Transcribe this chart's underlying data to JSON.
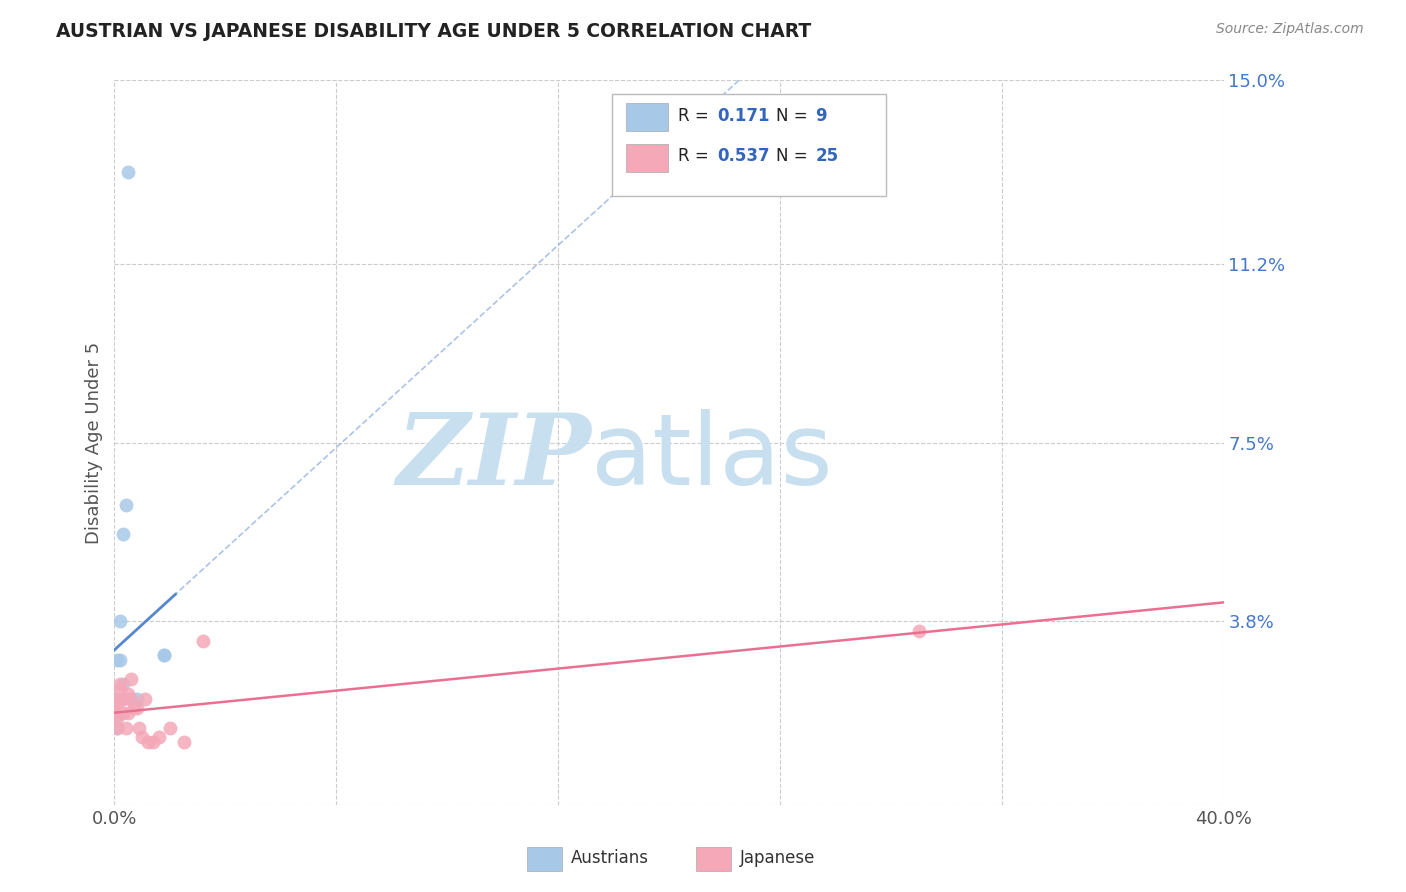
{
  "title": "AUSTRIAN VS JAPANESE DISABILITY AGE UNDER 5 CORRELATION CHART",
  "source": "Source: ZipAtlas.com",
  "ylabel": "Disability Age Under 5",
  "xlim": [
    0.0,
    0.4
  ],
  "ylim": [
    0.0,
    0.15
  ],
  "xtick_positions": [
    0.0,
    0.08,
    0.16,
    0.24,
    0.32,
    0.4
  ],
  "xticklabels_show": [
    "0.0%",
    "",
    "",
    "",
    "",
    "40.0%"
  ],
  "ytick_vals": [
    0.0,
    0.038,
    0.075,
    0.112,
    0.15
  ],
  "ytick_labels": [
    "",
    "3.8%",
    "7.5%",
    "11.2%",
    "15.0%"
  ],
  "austrians_x": [
    0.005,
    0.004,
    0.003,
    0.002,
    0.002,
    0.001,
    0.001,
    0.0,
    0.0,
    0.0,
    0.0,
    0.001,
    0.018,
    0.018,
    0.003,
    0.006,
    0.008,
    0.003
  ],
  "austrians_y": [
    0.131,
    0.062,
    0.056,
    0.038,
    0.03,
    0.03,
    0.022,
    0.022,
    0.02,
    0.019,
    0.018,
    0.016,
    0.031,
    0.031,
    0.025,
    0.022,
    0.022,
    0.022
  ],
  "japanese_x": [
    0.0,
    0.0,
    0.001,
    0.001,
    0.001,
    0.001,
    0.002,
    0.002,
    0.003,
    0.003,
    0.004,
    0.005,
    0.005,
    0.006,
    0.006,
    0.007,
    0.008,
    0.009,
    0.01,
    0.011,
    0.012,
    0.014,
    0.016,
    0.02,
    0.025,
    0.032,
    0.29
  ],
  "japanese_y": [
    0.021,
    0.019,
    0.021,
    0.018,
    0.016,
    0.022,
    0.025,
    0.024,
    0.022,
    0.019,
    0.016,
    0.023,
    0.019,
    0.026,
    0.022,
    0.02,
    0.02,
    0.016,
    0.014,
    0.022,
    0.013,
    0.013,
    0.014,
    0.016,
    0.013,
    0.034,
    0.036
  ],
  "austrians_R": 0.171,
  "austrians_N": 9,
  "japanese_R": 0.537,
  "japanese_N": 25,
  "blue_color": "#a8c8e8",
  "pink_color": "#f4a8b8",
  "blue_line_color": "#5588cc",
  "pink_line_color": "#e87090",
  "blue_dashed_color": "#88aadd",
  "legend_R_color": "#3366bb",
  "legend_N_color": "#3366bb",
  "marker_size": 100,
  "background_color": "#ffffff",
  "grid_color": "#cccccc",
  "watermark_zip_color": "#c8dff0",
  "watermark_atlas_color": "#c8dff0"
}
